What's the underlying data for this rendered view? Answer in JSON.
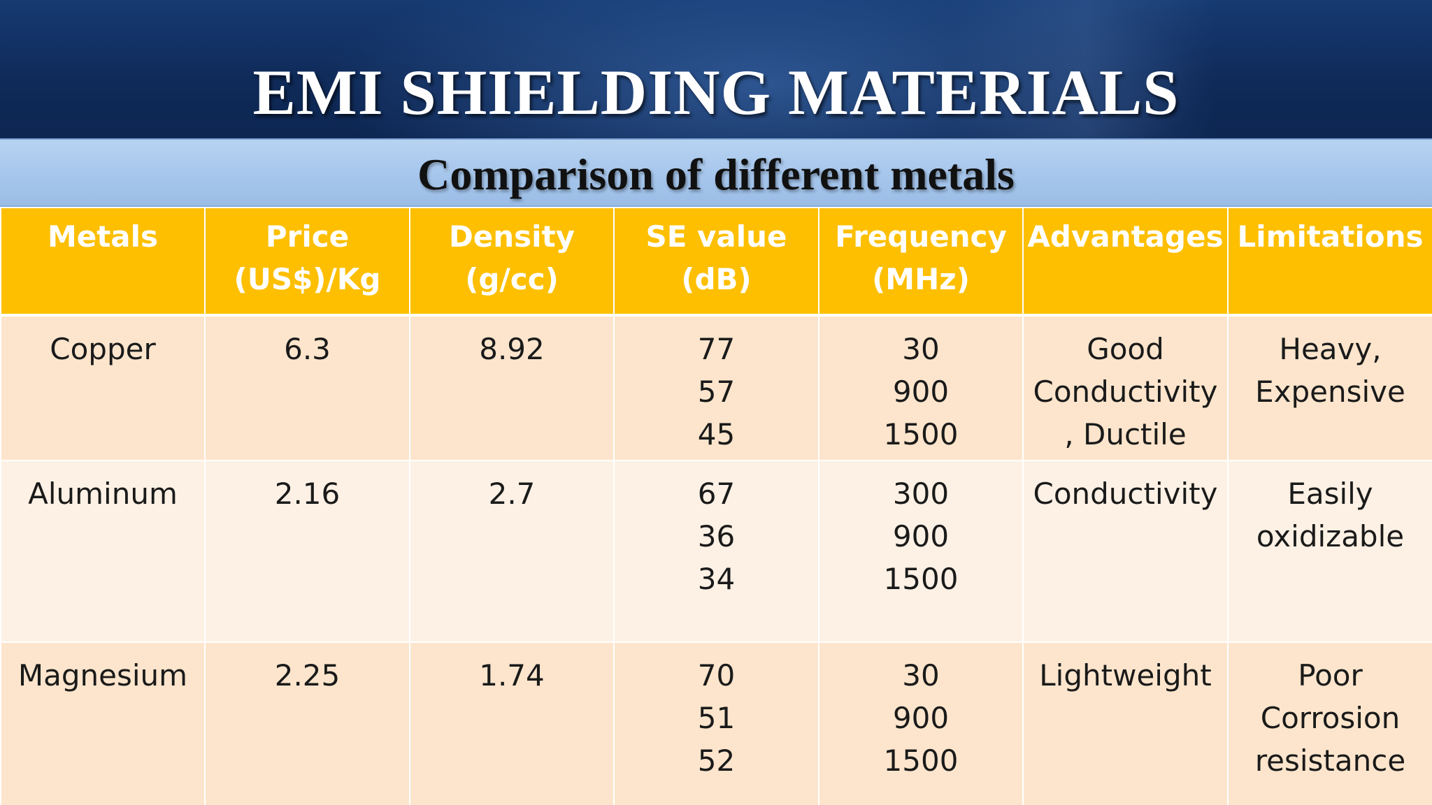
{
  "slide": {
    "title": "EMI SHIELDING MATERIALS",
    "subtitle": "Comparison of different metals"
  },
  "colors": {
    "title_band": "#0f2a58",
    "subtitle_band": "#a6c6ec",
    "header_row": "#fdbf00",
    "row_shade_dark": "#fce5cc",
    "row_shade_light": "#fdf1e5"
  },
  "table": {
    "headers": [
      [
        "Metals"
      ],
      [
        "Price",
        "(US$)/Kg"
      ],
      [
        "Density",
        "(g/cc)"
      ],
      [
        "SE value",
        "(dB)"
      ],
      [
        "Frequency",
        "(MHz)"
      ],
      [
        "Advantages"
      ],
      [
        "Limitations"
      ]
    ],
    "rows": [
      {
        "metal": "Copper",
        "price": "6.3",
        "density": "8.92",
        "se_values": [
          "77",
          "57",
          "45"
        ],
        "frequencies": [
          "30",
          "900",
          "1500"
        ],
        "advantages": [
          "Good",
          "Conductivity",
          ", Ductile"
        ],
        "limitations": [
          "Heavy,",
          "Expensive"
        ]
      },
      {
        "metal": "Aluminum",
        "price": "2.16",
        "density": "2.7",
        "se_values": [
          "67",
          "36",
          "34"
        ],
        "frequencies": [
          "300",
          "900",
          "1500"
        ],
        "advantages": [
          "Conductivity"
        ],
        "limitations": [
          "Easily",
          "oxidizable"
        ]
      },
      {
        "metal": "Magnesium",
        "price": "2.25",
        "density": "1.74",
        "se_values": [
          "70",
          "51",
          "52"
        ],
        "frequencies": [
          "30",
          "900",
          "1500"
        ],
        "advantages": [
          "Lightweight"
        ],
        "limitations": [
          "Poor",
          "Corrosion",
          "resistance"
        ]
      }
    ]
  }
}
